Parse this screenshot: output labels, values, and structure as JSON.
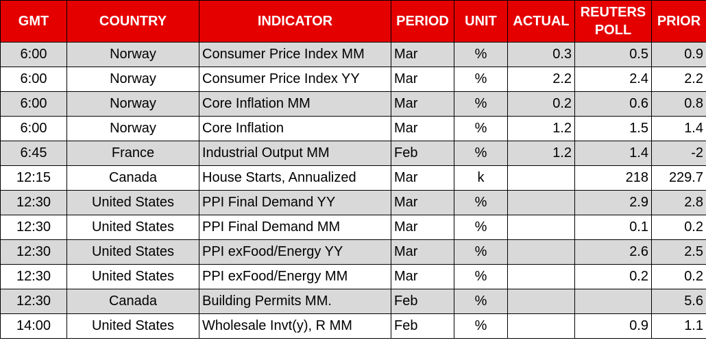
{
  "table": {
    "header": [
      "GMT",
      "COUNTRY",
      "INDICATOR",
      "PERIOD",
      "UNIT",
      "ACTUAL",
      "REUTERS POLL",
      "PRIOR"
    ],
    "rows": [
      [
        "6:00",
        "Norway",
        "Consumer Price Index MM",
        "Mar",
        "%",
        "0.3",
        "0.5",
        "0.9"
      ],
      [
        "6:00",
        "Norway",
        "Consumer Price Index YY",
        "Mar",
        "%",
        "2.2",
        "2.4",
        "2.2"
      ],
      [
        "6:00",
        "Norway",
        "Core Inflation MM",
        "Mar",
        "%",
        "0.2",
        "0.6",
        "0.8"
      ],
      [
        "6:00",
        "Norway",
        "Core Inflation",
        "Mar",
        "%",
        "1.2",
        "1.5",
        "1.4"
      ],
      [
        "6:45",
        "France",
        "Industrial Output MM",
        "Feb",
        "%",
        "1.2",
        "1.4",
        "-2"
      ],
      [
        "12:15",
        "Canada",
        "House Starts, Annualized",
        "Mar",
        "k",
        null,
        "218",
        "229.7"
      ],
      [
        "12:30",
        "United States",
        "PPI Final Demand YY",
        "Mar",
        "%",
        null,
        "2.9",
        "2.8"
      ],
      [
        "12:30",
        "United States",
        "PPI Final Demand MM",
        "Mar",
        "%",
        null,
        "0.1",
        "0.2"
      ],
      [
        "12:30",
        "United States",
        "PPI exFood/Energy YY",
        "Mar",
        "%",
        null,
        "2.6",
        "2.5"
      ],
      [
        "12:30",
        "United States",
        "PPI exFood/Energy MM",
        "Mar",
        "%",
        null,
        "0.2",
        "0.2"
      ],
      [
        "12:30",
        "Canada",
        "Building Permits MM.",
        "Feb",
        "%",
        null,
        null,
        "5.6"
      ],
      [
        "14:00",
        "United States",
        "Wholesale Invt(y), R MM",
        "Feb",
        "%",
        null,
        "0.9",
        "1.1"
      ]
    ]
  }
}
